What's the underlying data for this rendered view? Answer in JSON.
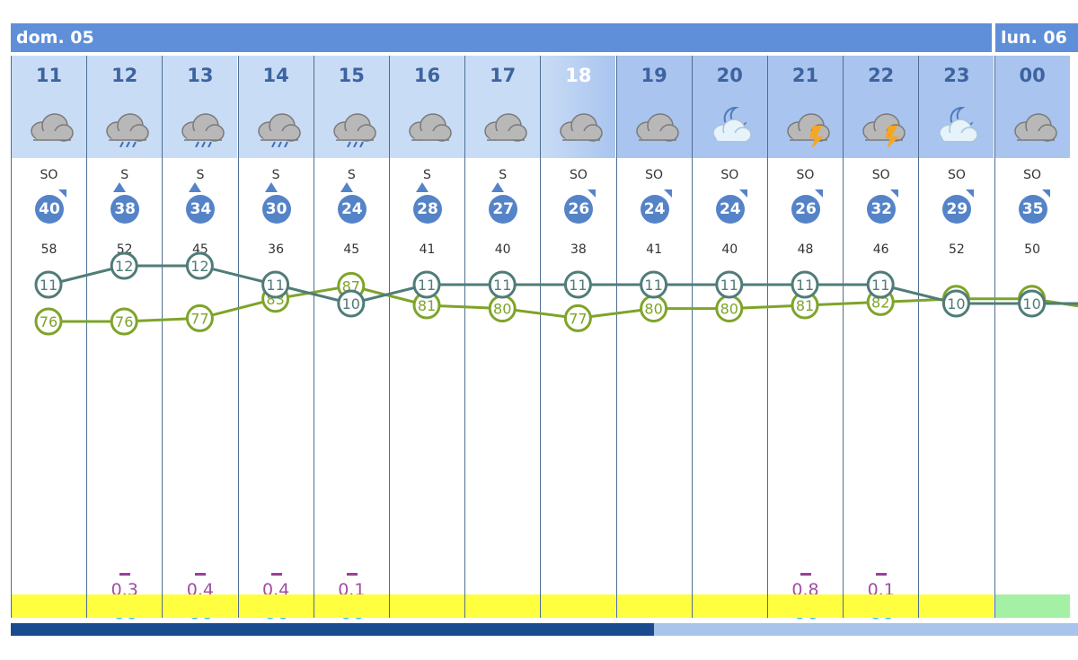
{
  "days": [
    {
      "label": "dom. 05"
    },
    {
      "label": "lun. 06"
    }
  ],
  "hours": [
    {
      "hour": "11",
      "icon": "cloud-icon",
      "dir": "SO",
      "speed": "40",
      "gust": "58",
      "precip": "",
      "temp": 11,
      "hum": 76
    },
    {
      "hour": "12",
      "icon": "rain-cloud-icon",
      "dir": "S",
      "speed": "38",
      "gust": "52",
      "precip": "0.3",
      "temp": 12,
      "hum": 76
    },
    {
      "hour": "13",
      "icon": "rain-cloud-icon",
      "dir": "S",
      "speed": "34",
      "gust": "45",
      "precip": "0.4",
      "temp": 12,
      "hum": 77
    },
    {
      "hour": "14",
      "icon": "rain-cloud-icon",
      "dir": "S",
      "speed": "30",
      "gust": "36",
      "precip": "0.4",
      "temp": 11,
      "hum": 83
    },
    {
      "hour": "15",
      "icon": "rain-cloud-icon",
      "dir": "S",
      "speed": "24",
      "gust": "45",
      "precip": "0.1",
      "temp": 10,
      "hum": 87
    },
    {
      "hour": "16",
      "icon": "cloud-icon",
      "dir": "S",
      "speed": "28",
      "gust": "41",
      "precip": "",
      "temp": 11,
      "hum": 81
    },
    {
      "hour": "17",
      "icon": "cloud-icon",
      "dir": "S",
      "speed": "27",
      "gust": "40",
      "precip": "",
      "temp": 11,
      "hum": 80
    },
    {
      "hour": "18",
      "icon": "cloud-icon",
      "dir": "SO",
      "speed": "26",
      "gust": "38",
      "precip": "",
      "temp": 11,
      "hum": 77
    },
    {
      "hour": "19",
      "icon": "cloud-icon",
      "dir": "SO",
      "speed": "24",
      "gust": "41",
      "precip": "",
      "temp": 11,
      "hum": 80
    },
    {
      "hour": "20",
      "icon": "moon-cloud-icon",
      "dir": "SO",
      "speed": "24",
      "gust": "40",
      "precip": "",
      "temp": 11,
      "hum": 80
    },
    {
      "hour": "21",
      "icon": "thunderstorm-icon",
      "dir": "SO",
      "speed": "26",
      "gust": "48",
      "precip": "0.8",
      "temp": 11,
      "hum": 81
    },
    {
      "hour": "22",
      "icon": "thunderstorm-icon",
      "dir": "SO",
      "speed": "32",
      "gust": "46",
      "precip": "0.1",
      "temp": 11,
      "hum": 82
    },
    {
      "hour": "23",
      "icon": "moon-cloud-icon",
      "dir": "SO",
      "speed": "29",
      "gust": "52",
      "precip": "",
      "temp": 10,
      "hum": 83
    },
    {
      "hour": "00",
      "icon": "cloud-icon",
      "dir": "SO",
      "speed": "35",
      "gust": "50",
      "precip": "",
      "temp": 10,
      "hum": 83
    }
  ],
  "colors": {
    "temp_line": "#4f7c78",
    "humidity_line": "#7ea42a",
    "header_band": "#5e8fd8"
  }
}
